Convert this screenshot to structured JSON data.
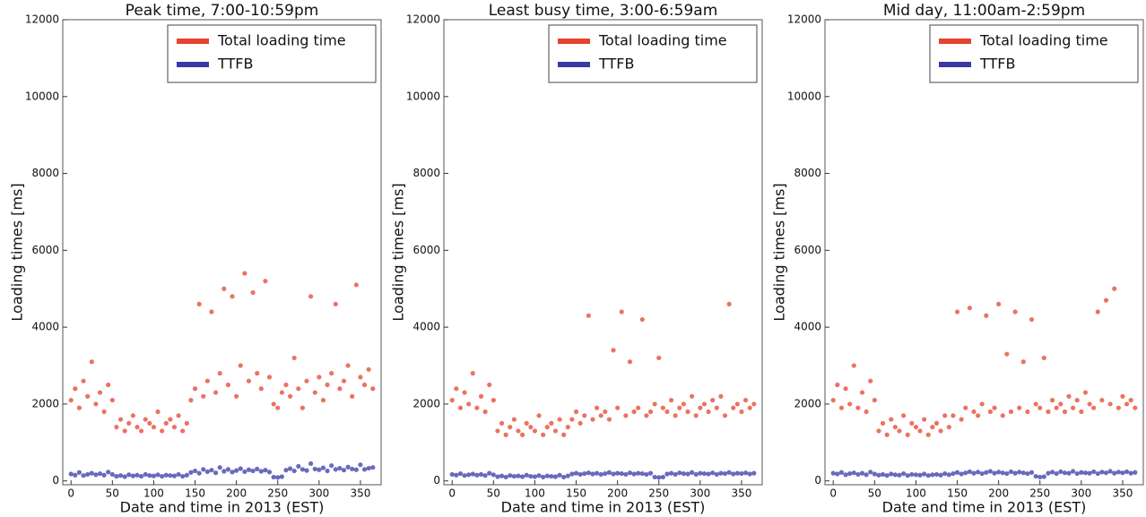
{
  "chart_data": [
    {
      "type": "scatter",
      "title": "Peak time, 7:00-10:59pm",
      "x_label": "Date and time in 2013 (EST)",
      "y_label": "Loading times [ms]",
      "xlim": [
        -10,
        375
      ],
      "ylim": [
        -100,
        12000
      ],
      "xticks": [
        0,
        50,
        100,
        150,
        200,
        250,
        300,
        350
      ],
      "yticks": [
        0,
        2000,
        4000,
        6000,
        8000,
        10000,
        12000
      ],
      "legend": "upper right",
      "x": [
        0,
        5,
        10,
        15,
        20,
        25,
        30,
        35,
        40,
        45,
        50,
        55,
        60,
        65,
        70,
        75,
        80,
        85,
        90,
        95,
        100,
        105,
        110,
        115,
        120,
        125,
        130,
        135,
        140,
        145,
        150,
        155,
        160,
        165,
        170,
        175,
        180,
        185,
        190,
        195,
        200,
        205,
        210,
        215,
        220,
        225,
        230,
        235,
        240,
        245,
        250,
        255,
        260,
        265,
        270,
        275,
        280,
        285,
        290,
        295,
        300,
        305,
        310,
        315,
        320,
        325,
        330,
        335,
        340,
        345,
        350,
        355,
        360,
        365
      ],
      "series": [
        {
          "name": "Total loading time",
          "color": "#e5432d",
          "values": [
            2100,
            2400,
            1900,
            2600,
            2200,
            3100,
            2000,
            2300,
            1800,
            2500,
            2100,
            1400,
            1600,
            1300,
            1500,
            1700,
            1400,
            1300,
            1600,
            1500,
            1400,
            1800,
            1300,
            1500,
            1600,
            1400,
            1700,
            1300,
            1500,
            2100,
            2400,
            4600,
            2200,
            2600,
            4400,
            2300,
            2800,
            5000,
            2500,
            4800,
            2200,
            3000,
            5400,
            2600,
            4900,
            2800,
            2400,
            5200,
            2700,
            2000,
            1900,
            2300,
            2500,
            2200,
            3200,
            2400,
            1900,
            2600,
            4800,
            2300,
            2700,
            2100,
            2500,
            2800,
            4600,
            2400,
            2600,
            3000,
            2200,
            5100,
            2700,
            2500,
            2900,
            2400
          ]
        },
        {
          "name": "TTFB",
          "color": "#3838a6",
          "values": [
            180,
            150,
            220,
            140,
            170,
            200,
            160,
            190,
            150,
            230,
            170,
            120,
            140,
            110,
            160,
            130,
            150,
            120,
            170,
            140,
            130,
            160,
            120,
            150,
            140,
            130,
            170,
            120,
            150,
            220,
            260,
            200,
            300,
            240,
            280,
            210,
            350,
            250,
            300,
            230,
            270,
            320,
            240,
            290,
            260,
            310,
            250,
            280,
            230,
            100,
            90,
            110,
            280,
            320,
            260,
            380,
            300,
            270,
            450,
            310,
            290,
            340,
            260,
            400,
            300,
            330,
            280,
            360,
            310,
            290,
            420,
            300,
            330,
            350
          ]
        }
      ]
    },
    {
      "type": "scatter",
      "title": "Least busy time, 3:00-6:59am",
      "x_label": "Date and time in 2013 (EST)",
      "y_label": "Loading times [ms]",
      "xlim": [
        -10,
        375
      ],
      "ylim": [
        -100,
        12000
      ],
      "xticks": [
        0,
        50,
        100,
        150,
        200,
        250,
        300,
        350
      ],
      "yticks": [
        0,
        2000,
        4000,
        6000,
        8000,
        10000,
        12000
      ],
      "legend": "upper right",
      "x": [
        0,
        5,
        10,
        15,
        20,
        25,
        30,
        35,
        40,
        45,
        50,
        55,
        60,
        65,
        70,
        75,
        80,
        85,
        90,
        95,
        100,
        105,
        110,
        115,
        120,
        125,
        130,
        135,
        140,
        145,
        150,
        155,
        160,
        165,
        170,
        175,
        180,
        185,
        190,
        195,
        200,
        205,
        210,
        215,
        220,
        225,
        230,
        235,
        240,
        245,
        250,
        255,
        260,
        265,
        270,
        275,
        280,
        285,
        290,
        295,
        300,
        305,
        310,
        315,
        320,
        325,
        330,
        335,
        340,
        345,
        350,
        355,
        360,
        365
      ],
      "series": [
        {
          "name": "Total loading time",
          "color": "#e5432d",
          "values": [
            2100,
            2400,
            1900,
            2300,
            2000,
            2800,
            1900,
            2200,
            1800,
            2500,
            2100,
            1300,
            1500,
            1200,
            1400,
            1600,
            1300,
            1200,
            1500,
            1400,
            1300,
            1700,
            1200,
            1400,
            1500,
            1300,
            1600,
            1200,
            1400,
            1600,
            1800,
            1500,
            1700,
            4300,
            1600,
            1900,
            1700,
            1800,
            1600,
            3400,
            1900,
            4400,
            1700,
            3100,
            1800,
            1900,
            4200,
            1700,
            1800,
            2000,
            3200,
            1900,
            1800,
            2100,
            1700,
            1900,
            2000,
            1800,
            2200,
            1700,
            1900,
            2000,
            1800,
            2100,
            1900,
            2200,
            1700,
            4600,
            1900,
            2000,
            1800,
            2100,
            1900,
            2000
          ]
        },
        {
          "name": "TTFB",
          "color": "#3838a6",
          "values": [
            170,
            150,
            190,
            140,
            160,
            180,
            150,
            170,
            140,
            200,
            160,
            110,
            130,
            100,
            140,
            120,
            130,
            110,
            150,
            120,
            110,
            140,
            100,
            130,
            120,
            110,
            150,
            100,
            130,
            180,
            200,
            170,
            190,
            210,
            180,
            200,
            170,
            190,
            220,
            180,
            200,
            190,
            170,
            210,
            180,
            200,
            190,
            170,
            200,
            100,
            90,
            100,
            180,
            200,
            170,
            210,
            190,
            180,
            220,
            170,
            200,
            190,
            180,
            210,
            170,
            200,
            190,
            220,
            180,
            200,
            190,
            210,
            180,
            200
          ]
        }
      ]
    },
    {
      "type": "scatter",
      "title": "Mid day, 11:00am-2:59pm",
      "x_label": "Date and time in 2013 (EST)",
      "y_label": "Loading times [ms]",
      "xlim": [
        -10,
        375
      ],
      "ylim": [
        -100,
        12000
      ],
      "xticks": [
        0,
        50,
        100,
        150,
        200,
        250,
        300,
        350
      ],
      "yticks": [
        0,
        2000,
        4000,
        6000,
        8000,
        10000,
        12000
      ],
      "legend": "upper right",
      "x": [
        0,
        5,
        10,
        15,
        20,
        25,
        30,
        35,
        40,
        45,
        50,
        55,
        60,
        65,
        70,
        75,
        80,
        85,
        90,
        95,
        100,
        105,
        110,
        115,
        120,
        125,
        130,
        135,
        140,
        145,
        150,
        155,
        160,
        165,
        170,
        175,
        180,
        185,
        190,
        195,
        200,
        205,
        210,
        215,
        220,
        225,
        230,
        235,
        240,
        245,
        250,
        255,
        260,
        265,
        270,
        275,
        280,
        285,
        290,
        295,
        300,
        305,
        310,
        315,
        320,
        325,
        330,
        335,
        340,
        345,
        350,
        355,
        360,
        365
      ],
      "series": [
        {
          "name": "Total loading time",
          "color": "#e5432d",
          "values": [
            2100,
            2500,
            1900,
            2400,
            2000,
            3000,
            1900,
            2300,
            1800,
            2600,
            2100,
            1300,
            1500,
            1200,
            1600,
            1400,
            1300,
            1700,
            1200,
            1500,
            1400,
            1300,
            1600,
            1200,
            1400,
            1500,
            1300,
            1700,
            1400,
            1700,
            4400,
            1600,
            1900,
            4500,
            1800,
            1700,
            2000,
            4300,
            1800,
            1900,
            4600,
            1700,
            3300,
            1800,
            4400,
            1900,
            3100,
            1800,
            4200,
            2000,
            1900,
            3200,
            1800,
            2100,
            1900,
            2000,
            1800,
            2200,
            1900,
            2100,
            1800,
            2300,
            2000,
            1900,
            4400,
            2100,
            4700,
            2000,
            5000,
            1900,
            2200,
            2000,
            2100,
            1900
          ]
        },
        {
          "name": "TTFB",
          "color": "#3838a6",
          "values": [
            200,
            180,
            220,
            160,
            190,
            210,
            170,
            200,
            160,
            230,
            180,
            150,
            170,
            140,
            180,
            160,
            150,
            190,
            140,
            170,
            160,
            150,
            180,
            140,
            160,
            170,
            150,
            190,
            160,
            190,
            220,
            180,
            210,
            240,
            200,
            230,
            190,
            220,
            250,
            200,
            230,
            210,
            190,
            240,
            200,
            230,
            210,
            190,
            220,
            120,
            100,
            110,
            200,
            230,
            190,
            240,
            210,
            200,
            250,
            190,
            220,
            210,
            200,
            240,
            190,
            230,
            210,
            250,
            200,
            230,
            210,
            240,
            200,
            220
          ]
        }
      ]
    }
  ]
}
